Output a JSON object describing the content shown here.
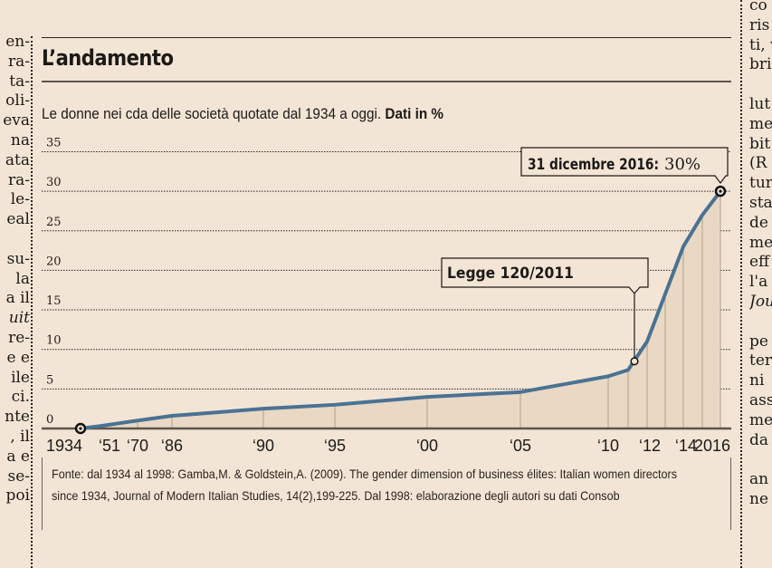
{
  "article": {
    "left_column_fragments": [
      "en-",
      "ra-",
      "ta-",
      "oli-",
      "eva",
      "na",
      "ata",
      "ra-",
      "le-",
      "eal",
      "",
      "su-",
      "la",
      "a il",
      "uit",
      "re-",
      "e e",
      "ile",
      "ci.",
      "nte",
      ", il",
      "a e",
      "se-",
      "poi"
    ],
    "right_column_fragments": [
      "co",
      "ris",
      "ti, v",
      "bri",
      "",
      "lut",
      "me",
      "bit",
      "(R",
      "tur",
      "sta",
      "de",
      "me",
      "eff",
      "l'a",
      "Jou",
      "",
      "pe",
      "ter",
      "ni",
      "ass",
      "me",
      "da",
      "",
      "an",
      "ne"
    ]
  },
  "header": {
    "title": "L’andamento",
    "subtitle": "Le donne nei cda delle società quotate dal 1934 a oggi.",
    "subtitle_bold": "Dati in %"
  },
  "chart_data": {
    "type": "area",
    "title": "L’andamento",
    "subtitle": "Le donne nei cda delle società quotate dal 1934 a oggi. Dati in %",
    "xlabel": "",
    "ylabel": "%",
    "ylim": [
      0,
      35
    ],
    "yticks": [
      0,
      5,
      10,
      15,
      20,
      25,
      30,
      35
    ],
    "grid": "horizontal-dotted",
    "x_tick_labels": [
      "1934",
      "‘51",
      "‘70",
      "‘86",
      "‘90",
      "‘95",
      "‘00",
      "‘05",
      "‘10",
      "‘12",
      "‘14",
      "2016"
    ],
    "series": [
      {
        "name": "Donne nei cda (%)",
        "color": "#4a7293",
        "points": [
          {
            "x": "1934",
            "y": 0
          },
          {
            "x": "1951",
            "y": 0.3
          },
          {
            "x": "1970",
            "y": 1.0
          },
          {
            "x": "1986",
            "y": 1.6
          },
          {
            "x": "1990",
            "y": 2.5
          },
          {
            "x": "1995",
            "y": 3.0
          },
          {
            "x": "2000",
            "y": 4.0
          },
          {
            "x": "2005",
            "y": 4.6
          },
          {
            "x": "2010",
            "y": 6.6
          },
          {
            "x": "2011",
            "y": 7.4
          },
          {
            "x": "2012",
            "y": 11.0
          },
          {
            "x": "2013",
            "y": 17.0
          },
          {
            "x": "2014",
            "y": 23.0
          },
          {
            "x": "2015",
            "y": 27.0
          },
          {
            "x": "2016",
            "y": 30.0
          }
        ]
      }
    ],
    "annotations": [
      {
        "label": "Legge 120/2011",
        "x": "2011",
        "y": 8.5
      },
      {
        "label_bold": "31 dicembre 2016:",
        "label_value": "30%",
        "x": "2016",
        "y": 30
      }
    ]
  },
  "source": {
    "text": "Fonte: dal 1934 al 1998: Gamba,M. & Goldstein,A. (2009). The gender dimension of business élites: Italian women directors since 1934, Journal of Modern Italian  Studies, 14(2),199-225.  Dal 1998: elaborazione degli autori su dati Consob"
  },
  "colors": {
    "background": "#f3e5d5",
    "line": "#4a7293",
    "area_fill": "#e8d8c4",
    "text": "#1c1a18"
  }
}
